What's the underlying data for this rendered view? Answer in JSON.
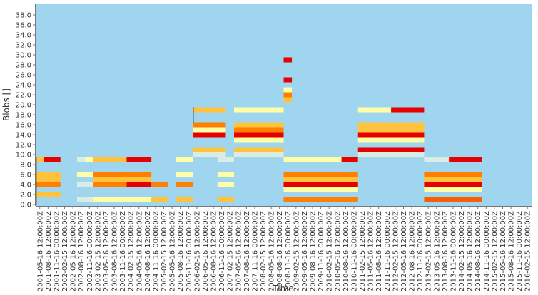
{
  "chart_data": {
    "type": "heatmap",
    "title": "",
    "xlabel": "Time",
    "ylabel": "Blobs []",
    "ylim": [
      0,
      39
    ],
    "y_ticks": [
      "0.0",
      "2.0",
      "4.0",
      "6.0",
      "8.0",
      "10.0",
      "12.0",
      "14.0",
      "16.0",
      "18.0",
      "20.0",
      "22.0",
      "24.0",
      "26.0",
      "28.0",
      "30.0",
      "32.0",
      "34.0",
      "36.0",
      "38.0"
    ],
    "x_ticks": [
      "2001-05-16 12:00:00Z",
      "2001-08-16 12:00:00Z",
      "2001-11-16 00:00:00Z",
      "2002-02-15 12:00:00Z",
      "2002-05-16 12:00:00Z",
      "2002-08-16 12:00:00Z",
      "2002-11-16 00:00:00Z",
      "2003-02-15 12:00:00Z",
      "2003-05-16 12:00:00Z",
      "2003-08-16 12:00:00Z",
      "2003-11-16 00:00:00Z",
      "2004-02-15 12:00:00Z",
      "2004-05-16 12:00:00Z",
      "2004-08-16 12:00:00Z",
      "2004-11-16 00:00:00Z",
      "2005-02-15 12:00:00Z",
      "2005-05-16 12:00:00Z",
      "2005-08-16 12:00:00Z",
      "2005-11-16 00:00:00Z",
      "2006-02-15 12:00:00Z",
      "2006-05-16 12:00:00Z",
      "2006-08-16 12:00:00Z",
      "2006-11-16 00:00:00Z",
      "2007-02-15 12:00:00Z",
      "2007-05-16 12:00:00Z",
      "2007-08-16 12:00:00Z",
      "2007-11-16 00:00:00Z",
      "2008-02-15 12:00:00Z",
      "2008-05-16 12:00:00Z",
      "2008-08-16 12:00:00Z",
      "2008-11-16 00:00:00Z",
      "2009-02-15 12:00:00Z",
      "2009-05-16 12:00:00Z",
      "2009-08-16 12:00:00Z",
      "2009-11-16 00:00:00Z",
      "2010-02-15 12:00:00Z",
      "2010-05-16 12:00:00Z",
      "2010-08-16 12:00:00Z",
      "2010-11-16 00:00:00Z",
      "2011-02-15 12:00:00Z",
      "2011-05-16 12:00:00Z",
      "2011-08-16 12:00:00Z",
      "2011-11-16 00:00:00Z",
      "2012-02-15 12:00:00Z",
      "2012-05-16 12:00:00Z",
      "2012-08-16 12:00:00Z",
      "2012-11-16 00:00:00Z",
      "2013-02-15 12:00:00Z",
      "2013-05-16 12:00:00Z",
      "2013-08-16 12:00:00Z",
      "2013-11-16 00:00:00Z",
      "2014-02-15 12:00:00Z",
      "2014-05-16 12:00:00Z",
      "2014-08-16 12:00:00Z",
      "2014-11-16 00:00:00Z",
      "2015-02-15 12:00:00Z",
      "2015-05-16 12:00:00Z",
      "2015-08-16 12:00:00Z",
      "2015-11-16 00:00:00Z",
      "2016-02-15 12:00:00Z"
    ],
    "grid": false,
    "background_color": "#9fd5ef",
    "color_scale": {
      "0.25": "#cfe6f5",
      "0.45": "#ffffa8",
      "0.65": "#ffc23d",
      "0.8": "#ff7f00",
      "1.0": "#e60000"
    },
    "cells": [
      {
        "x0": 0,
        "x1": 3,
        "y0": 8.5,
        "y1": 9.5,
        "level": 1.0
      },
      {
        "x0": 0,
        "x1": 1,
        "y0": 8.5,
        "y1": 9.5,
        "level": 0.65
      },
      {
        "x0": 0,
        "x1": 3,
        "y0": 5.5,
        "y1": 6.5,
        "level": 0.65
      },
      {
        "x0": 0,
        "x1": 3,
        "y0": 4.5,
        "y1": 5.5,
        "level": 0.65
      },
      {
        "x0": 0,
        "x1": 3,
        "y0": 3.5,
        "y1": 4.5,
        "level": 0.8
      },
      {
        "x0": 0,
        "x1": 3,
        "y0": 1.5,
        "y1": 2.5,
        "level": 0.65
      },
      {
        "x0": 5,
        "x1": 6,
        "y0": 8.5,
        "y1": 9.5,
        "level": 0.3
      },
      {
        "x0": 6,
        "x1": 7,
        "y0": 8.5,
        "y1": 9.5,
        "level": 0.45
      },
      {
        "x0": 7,
        "x1": 11,
        "y0": 8.5,
        "y1": 9.5,
        "level": 0.65
      },
      {
        "x0": 11,
        "x1": 14,
        "y0": 8.5,
        "y1": 9.5,
        "level": 1.0
      },
      {
        "x0": 5,
        "x1": 7,
        "y0": 5.5,
        "y1": 6.5,
        "level": 0.45
      },
      {
        "x0": 7,
        "x1": 14,
        "y0": 5.5,
        "y1": 6.5,
        "level": 0.8
      },
      {
        "x0": 7,
        "x1": 14,
        "y0": 4.5,
        "y1": 5.5,
        "level": 0.65
      },
      {
        "x0": 5,
        "x1": 7,
        "y0": 3.5,
        "y1": 4.5,
        "level": 0.3
      },
      {
        "x0": 7,
        "x1": 11,
        "y0": 3.5,
        "y1": 4.5,
        "level": 0.8
      },
      {
        "x0": 11,
        "x1": 14,
        "y0": 3.5,
        "y1": 4.5,
        "level": 1.0
      },
      {
        "x0": 14,
        "x1": 16,
        "y0": 3.5,
        "y1": 4.5,
        "level": 0.8
      },
      {
        "x0": 5,
        "x1": 7,
        "y0": 0.5,
        "y1": 1.5,
        "level": 0.3
      },
      {
        "x0": 7,
        "x1": 14,
        "y0": 0.5,
        "y1": 1.5,
        "level": 0.45
      },
      {
        "x0": 14,
        "x1": 16,
        "y0": 0.5,
        "y1": 1.5,
        "level": 0.65
      },
      {
        "x0": 17,
        "x1": 19,
        "y0": 8.5,
        "y1": 9.5,
        "level": 0.45
      },
      {
        "x0": 17,
        "x1": 19,
        "y0": 5.5,
        "y1": 6.5,
        "level": 0.45
      },
      {
        "x0": 17,
        "x1": 19,
        "y0": 3.5,
        "y1": 4.5,
        "level": 0.8
      },
      {
        "x0": 17,
        "x1": 19,
        "y0": 0.5,
        "y1": 1.5,
        "level": 0.65
      },
      {
        "x0": 19,
        "x1": 23,
        "y0": 18.5,
        "y1": 19.5,
        "level": 0.65
      },
      {
        "x0": 19,
        "x1": 23,
        "y0": 15.5,
        "y1": 16.5,
        "level": 0.8
      },
      {
        "x0": 19,
        "x1": 23,
        "y0": 14.5,
        "y1": 15.5,
        "level": 0.45
      },
      {
        "x0": 19,
        "x1": 23,
        "y0": 13.5,
        "y1": 14.5,
        "level": 1.0
      },
      {
        "x0": 19,
        "x1": 23,
        "y0": 10.5,
        "y1": 11.5,
        "level": 0.65
      },
      {
        "x0": 19,
        "x1": 23,
        "y0": 9.5,
        "y1": 10.5,
        "level": 0.3
      },
      {
        "x0": 22,
        "x1": 24,
        "y0": 8.5,
        "y1": 9.5,
        "level": 0.3
      },
      {
        "x0": 22,
        "x1": 24,
        "y0": 5.5,
        "y1": 6.5,
        "level": 0.45
      },
      {
        "x0": 22,
        "x1": 24,
        "y0": 3.5,
        "y1": 4.5,
        "level": 0.45
      },
      {
        "x0": 22,
        "x1": 24,
        "y0": 0.5,
        "y1": 1.5,
        "level": 0.65
      },
      {
        "x0": 24,
        "x1": 30,
        "y0": 18.5,
        "y1": 19.5,
        "level": 0.45
      },
      {
        "x0": 24,
        "x1": 30,
        "y0": 15.5,
        "y1": 16.5,
        "level": 0.65
      },
      {
        "x0": 24,
        "x1": 30,
        "y0": 14.5,
        "y1": 15.5,
        "level": 0.8
      },
      {
        "x0": 24,
        "x1": 30,
        "y0": 13.5,
        "y1": 14.5,
        "level": 1.0
      },
      {
        "x0": 24,
        "x1": 30,
        "y0": 12.5,
        "y1": 13.5,
        "level": 0.45
      },
      {
        "x0": 24,
        "x1": 30,
        "y0": 10.5,
        "y1": 11.5,
        "level": 0.65
      },
      {
        "x0": 24,
        "x1": 30,
        "y0": 9.5,
        "y1": 10.5,
        "level": 0.3
      },
      {
        "x0": 30,
        "x1": 31,
        "y0": 28.5,
        "y1": 29.5,
        "level": 1.0
      },
      {
        "x0": 30,
        "x1": 31,
        "y0": 24.5,
        "y1": 25.5,
        "level": 1.0
      },
      {
        "x0": 30,
        "x1": 31,
        "y0": 22.5,
        "y1": 23.5,
        "level": 0.45
      },
      {
        "x0": 30,
        "x1": 31,
        "y0": 21.5,
        "y1": 22.5,
        "level": 0.8
      },
      {
        "x0": 30,
        "x1": 31,
        "y0": 20.5,
        "y1": 21.5,
        "level": 0.65
      },
      {
        "x0": 30,
        "x1": 39,
        "y0": 8.5,
        "y1": 9.5,
        "level": 0.45
      },
      {
        "x0": 37,
        "x1": 39,
        "y0": 8.5,
        "y1": 9.5,
        "level": 1.0
      },
      {
        "x0": 30,
        "x1": 39,
        "y0": 5.5,
        "y1": 6.5,
        "level": 0.8
      },
      {
        "x0": 30,
        "x1": 39,
        "y0": 4.5,
        "y1": 5.5,
        "level": 0.65
      },
      {
        "x0": 30,
        "x1": 39,
        "y0": 3.5,
        "y1": 4.5,
        "level": 1.0
      },
      {
        "x0": 30,
        "x1": 39,
        "y0": 2.5,
        "y1": 3.5,
        "level": 0.45
      },
      {
        "x0": 30,
        "x1": 39,
        "y0": 0.5,
        "y1": 1.5,
        "level": 0.8
      },
      {
        "x0": 39,
        "x1": 47,
        "y0": 18.5,
        "y1": 19.5,
        "level": 0.45
      },
      {
        "x0": 43,
        "x1": 47,
        "y0": 18.5,
        "y1": 19.5,
        "level": 1.0
      },
      {
        "x0": 39,
        "x1": 47,
        "y0": 15.5,
        "y1": 16.5,
        "level": 0.65
      },
      {
        "x0": 39,
        "x1": 47,
        "y0": 14.5,
        "y1": 15.5,
        "level": 0.65
      },
      {
        "x0": 39,
        "x1": 47,
        "y0": 13.5,
        "y1": 14.5,
        "level": 1.0
      },
      {
        "x0": 39,
        "x1": 47,
        "y0": 12.5,
        "y1": 13.5,
        "level": 0.45
      },
      {
        "x0": 39,
        "x1": 47,
        "y0": 10.5,
        "y1": 11.5,
        "level": 1.0
      },
      {
        "x0": 39,
        "x1": 47,
        "y0": 9.5,
        "y1": 10.5,
        "level": 0.3
      },
      {
        "x0": 47,
        "x1": 50,
        "y0": 8.5,
        "y1": 9.5,
        "level": 0.3
      },
      {
        "x0": 50,
        "x1": 54,
        "y0": 8.5,
        "y1": 9.5,
        "level": 1.0
      },
      {
        "x0": 47,
        "x1": 54,
        "y0": 5.5,
        "y1": 6.5,
        "level": 0.8
      },
      {
        "x0": 47,
        "x1": 54,
        "y0": 4.5,
        "y1": 5.5,
        "level": 0.65
      },
      {
        "x0": 47,
        "x1": 54,
        "y0": 3.5,
        "y1": 4.5,
        "level": 1.0
      },
      {
        "x0": 47,
        "x1": 54,
        "y0": 2.5,
        "y1": 3.5,
        "level": 0.45
      },
      {
        "x0": 47,
        "x1": 54,
        "y0": 0.5,
        "y1": 1.5,
        "level": 0.85
      }
    ],
    "markers": [
      {
        "x": 0,
        "y0": 0,
        "y1": 9.5
      },
      {
        "x": 19,
        "y0": 16.5,
        "y1": 19.5
      }
    ]
  }
}
